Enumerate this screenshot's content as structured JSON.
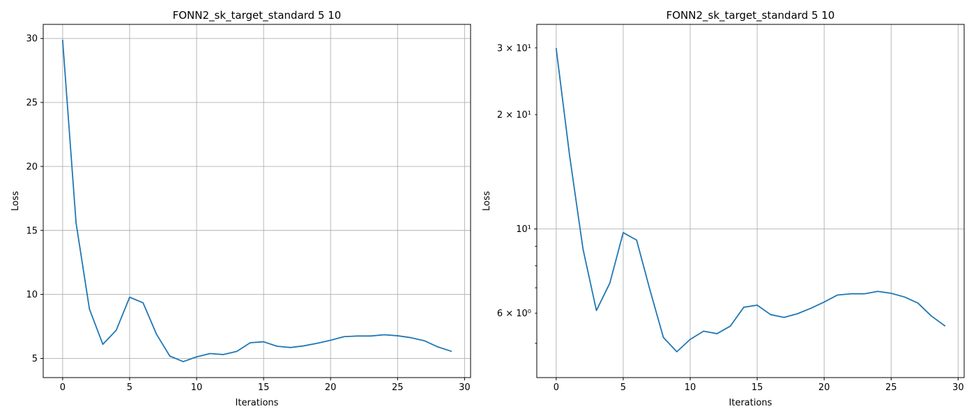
{
  "chart_data": [
    {
      "type": "line",
      "title": "FONN2_sk_target_standard 5 10",
      "xlabel": "Iterations",
      "ylabel": "Loss",
      "yscale": "linear",
      "xlim": [
        -1.45,
        30.45
      ],
      "ylim": [
        3.5,
        31.1
      ],
      "grid": true,
      "x_ticks": [
        0,
        5,
        10,
        15,
        20,
        25,
        30
      ],
      "x_tick_labels": [
        "0",
        "5",
        "10",
        "15",
        "20",
        "25",
        "30"
      ],
      "y_ticks": [
        5,
        10,
        15,
        20,
        25,
        30
      ],
      "y_tick_labels": [
        "5",
        "10",
        "15",
        "20",
        "25",
        "30"
      ],
      "series_color": "#1f77b4",
      "x": [
        0,
        1,
        2,
        3,
        4,
        5,
        6,
        7,
        8,
        9,
        10,
        11,
        12,
        13,
        14,
        15,
        16,
        17,
        18,
        19,
        20,
        21,
        22,
        23,
        24,
        25,
        26,
        27,
        28,
        29
      ],
      "values": [
        29.85,
        15.6,
        8.85,
        6.1,
        7.2,
        9.78,
        9.35,
        6.9,
        5.18,
        4.75,
        5.12,
        5.38,
        5.3,
        5.55,
        6.22,
        6.3,
        5.95,
        5.85,
        5.98,
        6.18,
        6.42,
        6.7,
        6.75,
        6.75,
        6.85,
        6.77,
        6.62,
        6.38,
        5.9,
        5.56
      ]
    },
    {
      "type": "line",
      "title": "FONN2_sk_target_standard 5 10",
      "xlabel": "Iterations",
      "ylabel": "Loss",
      "yscale": "log",
      "xlim": [
        -1.45,
        30.45
      ],
      "ylim": [
        4.06,
        34.6
      ],
      "grid": true,
      "x_ticks": [
        0,
        5,
        10,
        15,
        20,
        25,
        30
      ],
      "x_tick_labels": [
        "0",
        "5",
        "10",
        "15",
        "20",
        "25",
        "30"
      ],
      "y_major_ticks": [
        10
      ],
      "y_major_labels": [
        "10¹"
      ],
      "y_minor_ticks": [
        5,
        6,
        7,
        8,
        9,
        20,
        30
      ],
      "y_minor_labels": [
        "",
        "6 × 10⁰",
        "",
        "",
        "",
        "2 × 10¹",
        "3 × 10¹"
      ],
      "series_color": "#1f77b4",
      "x": [
        0,
        1,
        2,
        3,
        4,
        5,
        6,
        7,
        8,
        9,
        10,
        11,
        12,
        13,
        14,
        15,
        16,
        17,
        18,
        19,
        20,
        21,
        22,
        23,
        24,
        25,
        26,
        27,
        28,
        29
      ],
      "values": [
        29.85,
        15.6,
        8.85,
        6.1,
        7.2,
        9.78,
        9.35,
        6.9,
        5.18,
        4.75,
        5.12,
        5.38,
        5.3,
        5.55,
        6.22,
        6.3,
        5.95,
        5.85,
        5.98,
        6.18,
        6.42,
        6.7,
        6.75,
        6.75,
        6.85,
        6.77,
        6.62,
        6.38,
        5.9,
        5.56
      ]
    }
  ]
}
